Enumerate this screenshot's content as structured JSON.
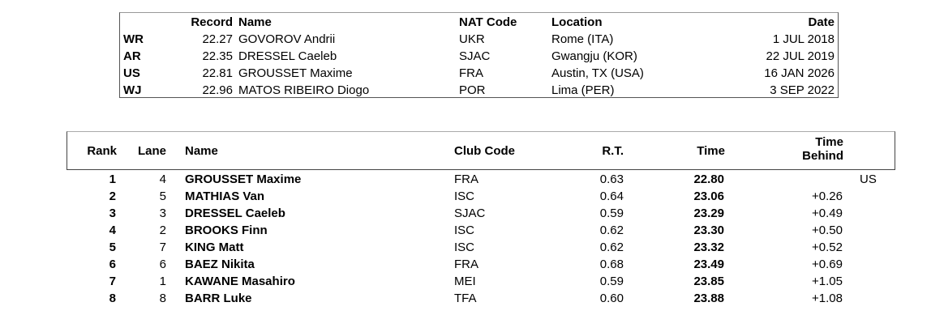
{
  "records": {
    "headers": {
      "record": "Record",
      "name": "Name",
      "nat": "NAT Code",
      "location": "Location",
      "date": "Date"
    },
    "rows": [
      {
        "code": "WR",
        "time": "22.27",
        "name": "GOVOROV Andrii",
        "nat": "UKR",
        "location": "Rome (ITA)",
        "date": "1 JUL 2018"
      },
      {
        "code": "AR",
        "time": "22.35",
        "name": "DRESSEL Caeleb",
        "nat": "SJAC",
        "location": "Gwangju (KOR)",
        "date": "22 JUL 2019"
      },
      {
        "code": "US",
        "time": "22.81",
        "name": "GROUSSET Maxime",
        "nat": "FRA",
        "location": "Austin, TX (USA)",
        "date": "16 JAN 2026"
      },
      {
        "code": "WJ",
        "time": "22.96",
        "name": "MATOS RIBEIRO Diogo",
        "nat": "POR",
        "location": "Lima (PER)",
        "date": "3 SEP 2022"
      }
    ]
  },
  "results": {
    "headers": {
      "rank": "Rank",
      "lane": "Lane",
      "name": "Name",
      "club": "Club Code",
      "rt": "R.T.",
      "time": "Time",
      "behind1": "Time",
      "behind2": "Behind"
    },
    "rows": [
      {
        "rank": "1",
        "lane": "4",
        "name": "GROUSSET Maxime",
        "club": "FRA",
        "rt": "0.63",
        "time": "22.80",
        "behind": "",
        "note": "US"
      },
      {
        "rank": "2",
        "lane": "5",
        "name": "MATHIAS Van",
        "club": "ISC",
        "rt": "0.64",
        "time": "23.06",
        "behind": "+0.26",
        "note": ""
      },
      {
        "rank": "3",
        "lane": "3",
        "name": "DRESSEL Caeleb",
        "club": "SJAC",
        "rt": "0.59",
        "time": "23.29",
        "behind": "+0.49",
        "note": ""
      },
      {
        "rank": "4",
        "lane": "2",
        "name": "BROOKS Finn",
        "club": "ISC",
        "rt": "0.62",
        "time": "23.30",
        "behind": "+0.50",
        "note": ""
      },
      {
        "rank": "5",
        "lane": "7",
        "name": "KING Matt",
        "club": "ISC",
        "rt": "0.62",
        "time": "23.32",
        "behind": "+0.52",
        "note": ""
      },
      {
        "rank": "6",
        "lane": "6",
        "name": "BAEZ Nikita",
        "club": "FRA",
        "rt": "0.68",
        "time": "23.49",
        "behind": "+0.69",
        "note": ""
      },
      {
        "rank": "7",
        "lane": "1",
        "name": "KAWANE Masahiro",
        "club": "MEI",
        "rt": "0.59",
        "time": "23.85",
        "behind": "+1.05",
        "note": ""
      },
      {
        "rank": "8",
        "lane": "8",
        "name": "BARR Luke",
        "club": "TFA",
        "rt": "0.60",
        "time": "23.88",
        "behind": "+1.08",
        "note": ""
      }
    ]
  }
}
